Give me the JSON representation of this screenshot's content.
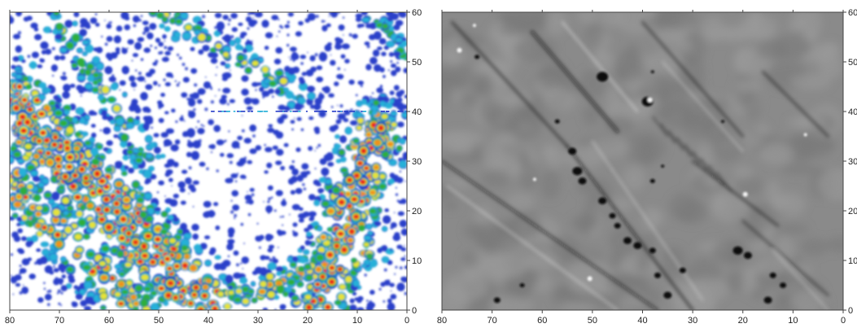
{
  "chart_data": [
    {
      "type": "heatmap",
      "colormap": [
        "#2a3fc9",
        "#26b0d8",
        "#2fae3c",
        "#e6e23a",
        "#f0901e",
        "#e8231a"
      ],
      "xlim": [
        80,
        0
      ],
      "ylim": [
        0,
        60
      ],
      "x_ticks": [
        80,
        70,
        60,
        50,
        40,
        30,
        20,
        10,
        0
      ],
      "y_ticks": [
        0,
        10,
        20,
        30,
        40,
        50,
        60
      ],
      "y_axis_side": "right",
      "grid": false
    },
    {
      "type": "heatmap",
      "colormap": [
        "#101010",
        "#7f7f7f",
        "#f4f4f4"
      ],
      "xlim": [
        80,
        0
      ],
      "ylim": [
        0,
        60
      ],
      "x_ticks": [
        80,
        70,
        60,
        50,
        40,
        30,
        20,
        10,
        0
      ],
      "y_ticks": [
        0,
        10,
        20,
        30,
        40,
        50,
        60
      ],
      "y_axis_side": "right",
      "grid": false
    }
  ]
}
